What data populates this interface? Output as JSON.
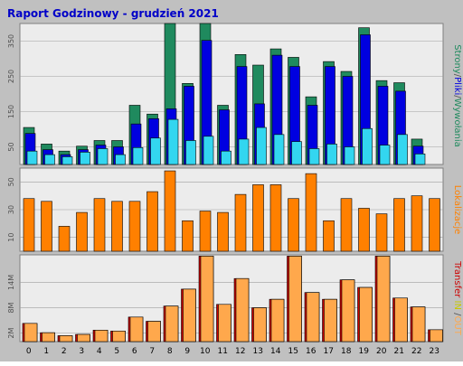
{
  "title": "Raport Godzinowy -  grudzień 2021",
  "colors": {
    "background": "#c0c0c0",
    "plot_background": "#ececec",
    "grid": "#a0a0a0",
    "title": "#0000c8",
    "strony": "#1f8a5e",
    "pliki": "#0000e0",
    "wywolania": "#33d6f0",
    "lokalizacje": "#ff8000",
    "transfer_in": "#cc0000",
    "transfer_out": "#ffa84c"
  },
  "legends": {
    "top": [
      {
        "text": "Strony",
        "color": "#1f8a5e"
      },
      {
        "text": "/",
        "color": "#555555"
      },
      {
        "text": "Pliki",
        "color": "#0000e0"
      },
      {
        "text": "/",
        "color": "#555555"
      },
      {
        "text": "Wywołania",
        "color": "#1f8a5e"
      }
    ],
    "middle": [
      {
        "text": "Lokalizacje",
        "color": "#ff8000"
      }
    ],
    "bottom": [
      {
        "text": "Transfer",
        "color": "#cc0000"
      },
      {
        "text": " IN ",
        "color": "#c8c800"
      },
      {
        "text": "/",
        "color": "#555555"
      },
      {
        "text": "OUT",
        "color": "#ffa84c"
      }
    ]
  },
  "chart_data": [
    {
      "type": "bar",
      "ylim": [
        0,
        400
      ],
      "yticks": [
        "50",
        "150",
        "250",
        "350"
      ],
      "ytick_values": [
        50,
        150,
        250,
        350
      ],
      "categories": [
        "0",
        "1",
        "2",
        "3",
        "4",
        "5",
        "6",
        "7",
        "8",
        "9",
        "10",
        "11",
        "12",
        "13",
        "14",
        "15",
        "16",
        "17",
        "18",
        "19",
        "20",
        "21",
        "22",
        "23"
      ],
      "series": [
        {
          "name": "Strony",
          "values": [
            105,
            58,
            38,
            52,
            68,
            68,
            168,
            143,
            400,
            230,
            400,
            168,
            312,
            282,
            328,
            304,
            192,
            292,
            264,
            388,
            238,
            232,
            72,
            0
          ]
        },
        {
          "name": "Pliki",
          "values": [
            88,
            42,
            28,
            42,
            55,
            50,
            115,
            130,
            158,
            222,
            352,
            155,
            278,
            172,
            310,
            278,
            168,
            278,
            250,
            368,
            222,
            208,
            52,
            0
          ]
        },
        {
          "name": "Wywołania",
          "values": [
            38,
            28,
            22,
            35,
            45,
            28,
            48,
            75,
            128,
            68,
            80,
            38,
            72,
            105,
            85,
            65,
            45,
            58,
            50,
            102,
            55,
            85,
            30,
            0
          ]
        }
      ]
    },
    {
      "type": "bar",
      "ylim": [
        0,
        60
      ],
      "yticks": [
        "10",
        "30",
        "50"
      ],
      "ytick_values": [
        10,
        30,
        50
      ],
      "categories": [
        "0",
        "1",
        "2",
        "3",
        "4",
        "5",
        "6",
        "7",
        "8",
        "9",
        "10",
        "11",
        "12",
        "13",
        "14",
        "15",
        "16",
        "17",
        "18",
        "19",
        "20",
        "21",
        "22",
        "23"
      ],
      "series": [
        {
          "name": "Lokalizacje",
          "values": [
            38,
            36,
            18,
            28,
            38,
            36,
            36,
            43,
            58,
            22,
            29,
            28,
            41,
            48,
            48,
            38,
            56,
            22,
            38,
            31,
            27,
            38,
            40,
            38
          ]
        }
      ]
    },
    {
      "type": "bar",
      "ylim": [
        0,
        20.5
      ],
      "yticks": [
        "2M",
        "8M",
        "14M"
      ],
      "ytick_values": [
        2,
        8,
        14
      ],
      "xticks": [
        "0",
        "1",
        "2",
        "3",
        "4",
        "5",
        "6",
        "7",
        "8",
        "9",
        "10",
        "11",
        "12",
        "13",
        "14",
        "15",
        "16",
        "17",
        "18",
        "19",
        "20",
        "21",
        "22",
        "23"
      ],
      "categories": [
        "0",
        "1",
        "2",
        "3",
        "4",
        "5",
        "6",
        "7",
        "8",
        "9",
        "10",
        "11",
        "12",
        "13",
        "14",
        "15",
        "16",
        "17",
        "18",
        "19",
        "20",
        "21",
        "22",
        "23"
      ],
      "series": [
        {
          "name": "IN",
          "values": [
            4.3,
            2.1,
            1.4,
            1.7,
            2.7,
            2.5,
            5.8,
            4.8,
            8.4,
            12.4,
            20.2,
            8.8,
            14.9,
            8.0,
            10.0,
            20.2,
            11.6,
            10.0,
            14.6,
            12.8,
            20.2,
            10.3,
            8.2,
            2.8
          ]
        },
        {
          "name": "OUT",
          "values": [
            4.3,
            2.1,
            1.4,
            1.7,
            2.7,
            2.5,
            5.8,
            4.8,
            8.4,
            12.4,
            20.2,
            8.8,
            14.9,
            8.0,
            10.0,
            20.2,
            11.6,
            10.0,
            14.6,
            12.8,
            20.2,
            10.3,
            8.2,
            2.8
          ]
        }
      ]
    }
  ]
}
